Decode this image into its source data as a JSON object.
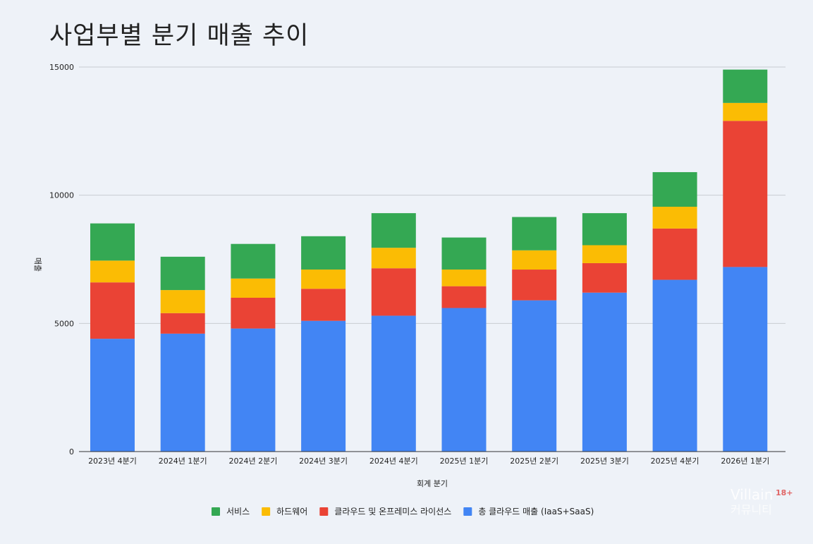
{
  "chart_data": {
    "type": "bar",
    "stacked": true,
    "title": "사업부별 분기 매출 추이",
    "xlabel": "회계 분기",
    "ylabel": "매출",
    "ylim": [
      0,
      15000
    ],
    "yticks": [
      0,
      5000,
      10000,
      15000
    ],
    "grid": true,
    "legend_position": "bottom",
    "categories": [
      "2023년 4분기",
      "2024년 1분기",
      "2024년 2분기",
      "2024년 3분기",
      "2024년 4분기",
      "2025년 1분기",
      "2025년 2분기",
      "2025년 3분기",
      "2025년 4분기",
      "2026년 1분기"
    ],
    "series": [
      {
        "name": "총 클라우드 매출 (IaaS+SaaS)",
        "color": "#4285f4",
        "values": [
          4400,
          4600,
          4800,
          5100,
          5300,
          5600,
          5900,
          6200,
          6700,
          7200
        ]
      },
      {
        "name": "클라우드 및 온프레미스 라이선스",
        "color": "#ea4335",
        "values": [
          2200,
          800,
          1200,
          1250,
          1850,
          850,
          1200,
          1150,
          2000,
          5700
        ]
      },
      {
        "name": "하드웨어",
        "color": "#fbbc04",
        "values": [
          850,
          900,
          750,
          750,
          800,
          650,
          750,
          700,
          850,
          700
        ]
      },
      {
        "name": "서비스",
        "color": "#34a853",
        "values": [
          1450,
          1300,
          1350,
          1300,
          1350,
          1250,
          1300,
          1250,
          1350,
          1300
        ]
      }
    ],
    "legend_order": [
      "서비스",
      "하드웨어",
      "클라우드 및 온프레미스 라이선스",
      "총 클라우드 매출 (IaaS+SaaS)"
    ]
  },
  "watermark": {
    "text": "Villain",
    "subtext": "커뮤니티",
    "badge": "18+"
  }
}
